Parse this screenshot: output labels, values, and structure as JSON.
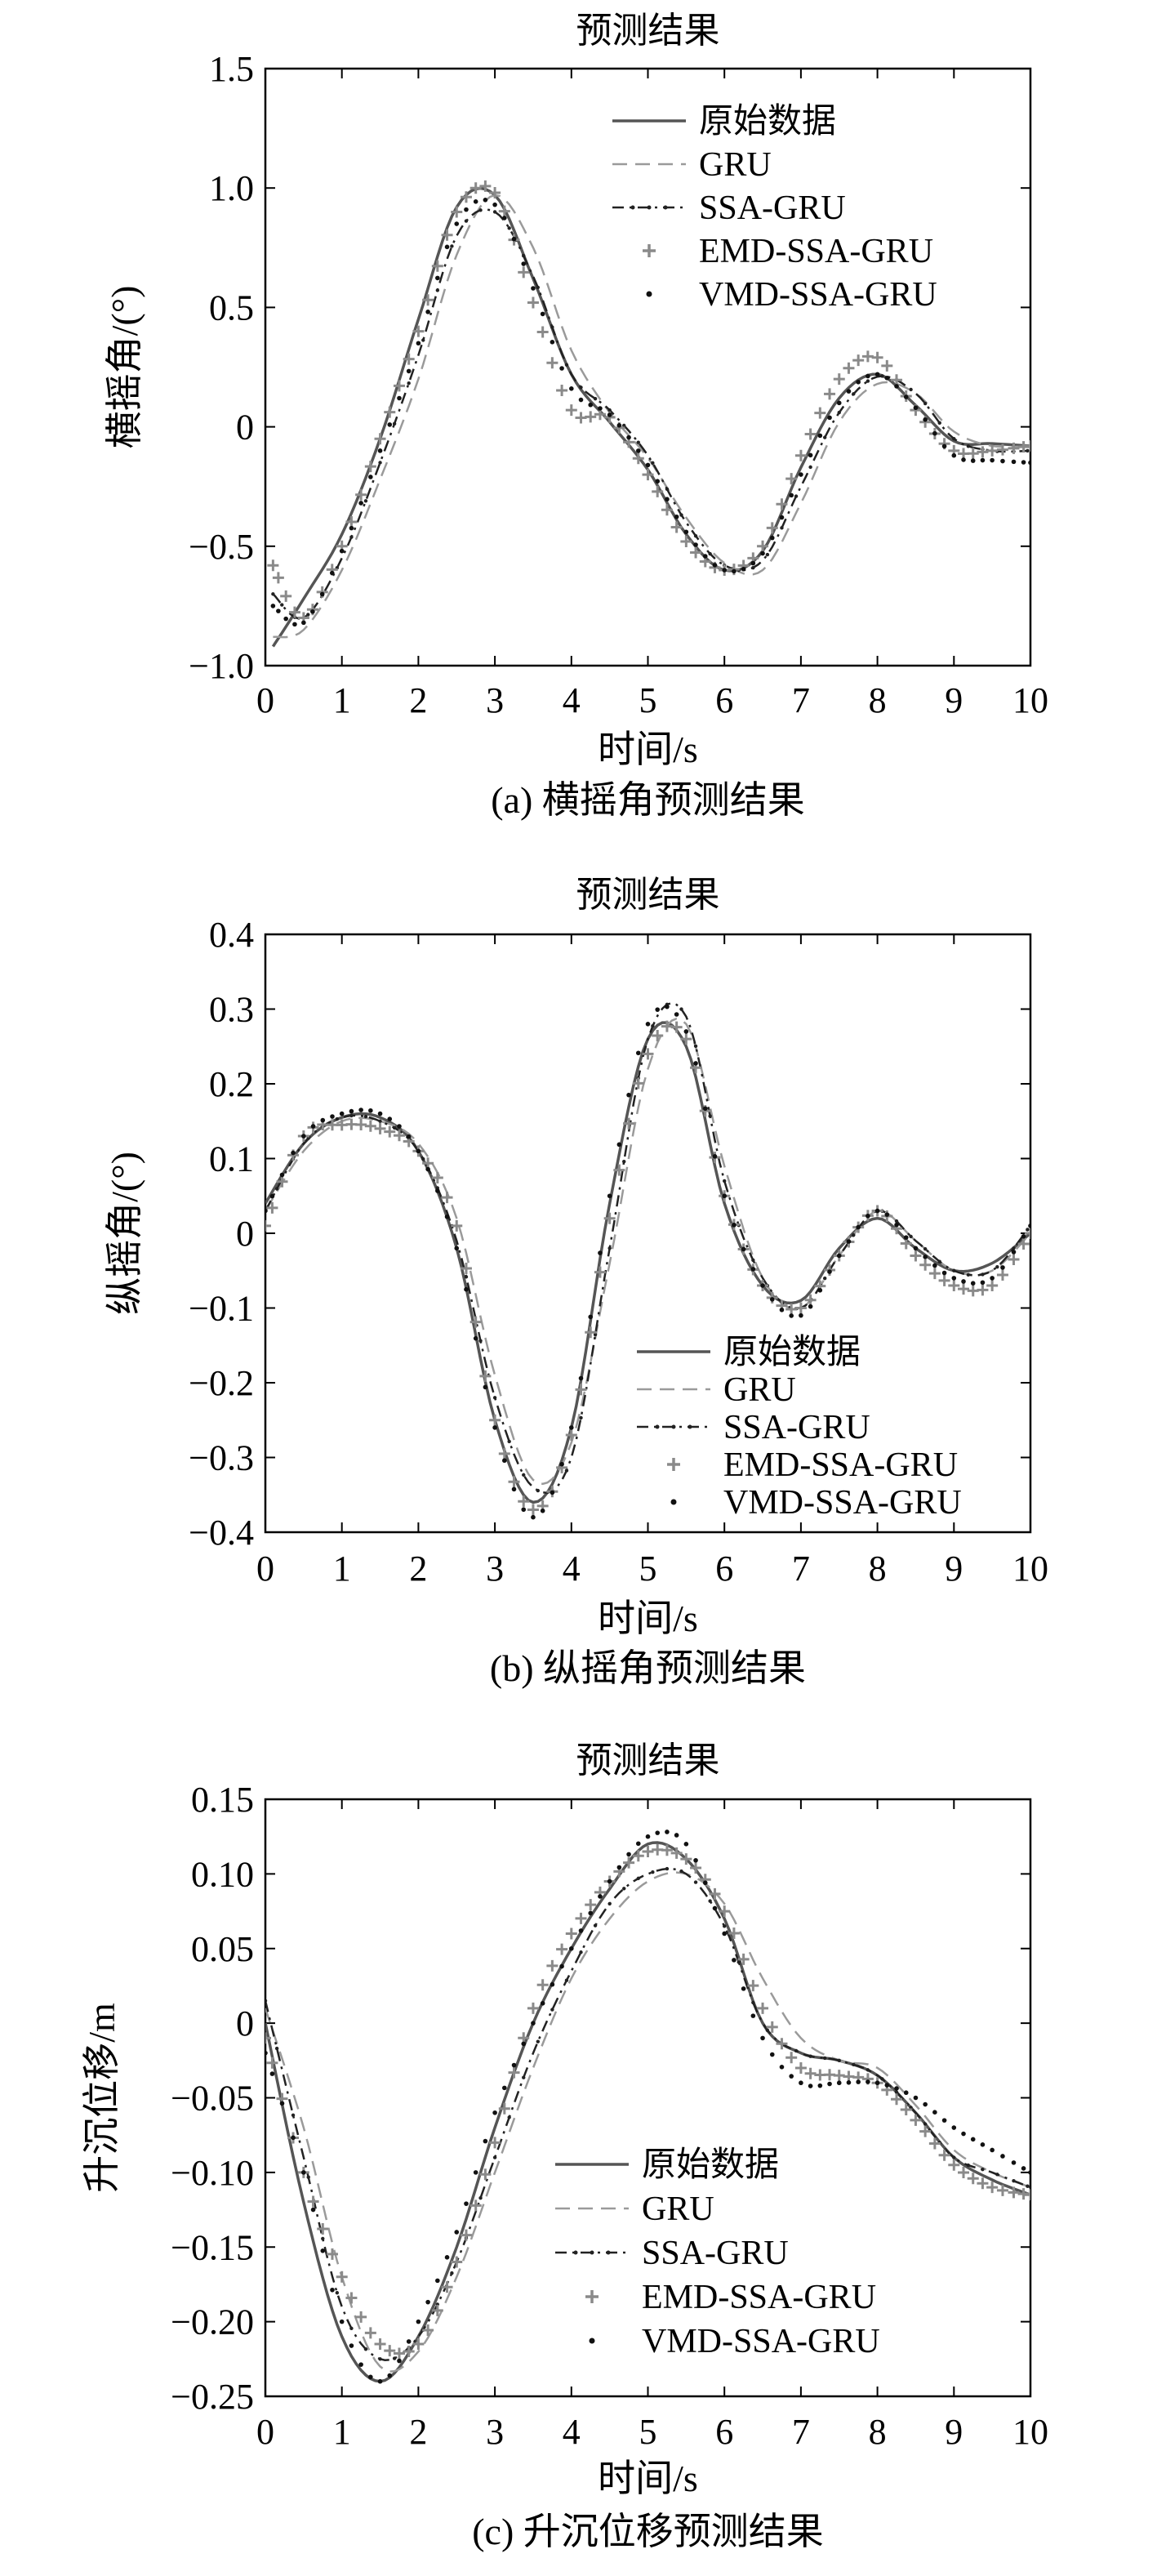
{
  "chart_data": [
    {
      "type": "line",
      "title": "预测结果",
      "caption": "(a) 横摇角预测结果",
      "xlabel": "时间/s",
      "ylabel": "横摇角/(°)",
      "xlim": [
        0,
        10
      ],
      "ylim": [
        -1.0,
        1.5
      ],
      "xticks": [
        0,
        1,
        2,
        3,
        4,
        5,
        6,
        7,
        8,
        9,
        10
      ],
      "xtick_labels": [
        "0",
        "1",
        "2",
        "3",
        "4",
        "5",
        "6",
        "7",
        "8",
        "9",
        "10"
      ],
      "yticks": [
        -1.0,
        -0.5,
        0,
        0.5,
        1.0,
        1.5
      ],
      "ytick_labels": [
        "−1.0",
        "−0.5",
        "0",
        "0.5",
        "1.0",
        "1.5"
      ],
      "legend_position": "top-right",
      "grid": false,
      "x": [
        0.1,
        0.5,
        1.0,
        1.5,
        2.0,
        2.5,
        3.0,
        3.5,
        4.0,
        4.5,
        5.0,
        5.5,
        6.0,
        6.5,
        7.0,
        7.5,
        8.0,
        8.5,
        9.0,
        9.5,
        10.0
      ],
      "series": [
        {
          "name": "原始数据",
          "style": "solid",
          "color": "#555555",
          "values": [
            -0.92,
            -0.72,
            -0.45,
            -0.05,
            0.45,
            0.92,
            0.97,
            0.62,
            0.22,
            0.02,
            -0.18,
            -0.45,
            -0.6,
            -0.52,
            -0.17,
            0.12,
            0.22,
            0.09,
            -0.06,
            -0.07,
            -0.08
          ]
        },
        {
          "name": "GRU",
          "style": "dashed",
          "color": "#9a9a9a",
          "values": [
            -0.88,
            -0.85,
            -0.6,
            -0.22,
            0.2,
            0.72,
            0.97,
            0.75,
            0.32,
            0.06,
            -0.13,
            -0.38,
            -0.57,
            -0.6,
            -0.32,
            0.02,
            0.18,
            0.14,
            -0.02,
            -0.08,
            -0.08
          ]
        },
        {
          "name": "SSA-GRU",
          "style": "dashdot",
          "color": "#222222",
          "values": [
            -0.7,
            -0.8,
            -0.55,
            -0.15,
            0.3,
            0.8,
            0.9,
            0.63,
            0.22,
            0.07,
            -0.12,
            -0.4,
            -0.58,
            -0.56,
            -0.25,
            0.06,
            0.21,
            0.14,
            -0.05,
            -0.1,
            -0.1
          ]
        },
        {
          "name": "EMD-SSA-GRU",
          "style": "plus",
          "color": "#8a8a8a",
          "values": [
            -0.58,
            -0.8,
            -0.5,
            -0.05,
            0.4,
            0.9,
            0.98,
            0.52,
            0.07,
            0.04,
            -0.2,
            -0.48,
            -0.6,
            -0.5,
            -0.12,
            0.2,
            0.29,
            0.07,
            -0.1,
            -0.1,
            -0.08
          ]
        },
        {
          "name": "VMD-SSA-GRU",
          "style": "dot",
          "color": "#111111",
          "values": [
            -0.75,
            -0.82,
            -0.52,
            -0.1,
            0.35,
            0.85,
            0.93,
            0.58,
            0.16,
            0.05,
            -0.16,
            -0.44,
            -0.6,
            -0.53,
            -0.2,
            0.1,
            0.22,
            0.08,
            -0.12,
            -0.14,
            -0.15
          ]
        }
      ]
    },
    {
      "type": "line",
      "title": "预测结果",
      "caption": "(b) 纵摇角预测结果",
      "xlabel": "时间/s",
      "ylabel": "纵摇角/(°)",
      "xlim": [
        0,
        10
      ],
      "ylim": [
        -0.4,
        0.4
      ],
      "xticks": [
        0,
        1,
        2,
        3,
        4,
        5,
        6,
        7,
        8,
        9,
        10
      ],
      "xtick_labels": [
        "0",
        "1",
        "2",
        "3",
        "4",
        "5",
        "6",
        "7",
        "8",
        "9",
        "10"
      ],
      "yticks": [
        -0.4,
        -0.3,
        -0.2,
        -0.1,
        0,
        0.1,
        0.2,
        0.3,
        0.4
      ],
      "ytick_labels": [
        "−0.4",
        "−0.3",
        "−0.2",
        "−0.1",
        "0",
        "0.1",
        "0.2",
        "0.3",
        "0.4"
      ],
      "legend_position": "bottom-right",
      "grid": false,
      "x": [
        0.0,
        0.5,
        1.0,
        1.5,
        2.0,
        2.5,
        3.0,
        3.5,
        4.0,
        4.5,
        5.0,
        5.5,
        6.0,
        6.5,
        7.0,
        7.5,
        8.0,
        8.5,
        9.0,
        9.5,
        10.0
      ],
      "series": [
        {
          "name": "原始数据",
          "style": "solid",
          "color": "#555555",
          "values": [
            0.04,
            0.12,
            0.155,
            0.155,
            0.11,
            -0.02,
            -0.25,
            -0.36,
            -0.26,
            0.04,
            0.26,
            0.25,
            0.04,
            -0.07,
            -0.09,
            -0.02,
            0.02,
            -0.02,
            -0.05,
            -0.04,
            0.0
          ]
        },
        {
          "name": "GRU",
          "style": "dashed",
          "color": "#9a9a9a",
          "values": [
            0.03,
            0.11,
            0.15,
            0.15,
            0.12,
            0.02,
            -0.19,
            -0.33,
            -0.28,
            -0.04,
            0.22,
            0.28,
            0.09,
            -0.06,
            -0.1,
            -0.03,
            0.03,
            -0.01,
            -0.05,
            -0.05,
            0.0
          ]
        },
        {
          "name": "SSA-GRU",
          "style": "dashdot",
          "color": "#222222",
          "values": [
            0.03,
            0.12,
            0.155,
            0.15,
            0.11,
            -0.01,
            -0.22,
            -0.34,
            -0.3,
            -0.02,
            0.26,
            0.29,
            0.07,
            -0.06,
            -0.1,
            -0.03,
            0.03,
            -0.01,
            -0.05,
            -0.05,
            0.01
          ]
        },
        {
          "name": "EMD-SSA-GRU",
          "style": "plus",
          "color": "#8a8a8a",
          "values": [
            0.01,
            0.13,
            0.145,
            0.14,
            0.11,
            0.01,
            -0.25,
            -0.37,
            -0.27,
            0.02,
            0.24,
            0.26,
            0.05,
            -0.07,
            -0.1,
            -0.03,
            0.03,
            -0.03,
            -0.07,
            -0.07,
            0.0
          ]
        },
        {
          "name": "VMD-SSA-GRU",
          "style": "dot",
          "color": "#111111",
          "values": [
            0.03,
            0.13,
            0.16,
            0.16,
            0.11,
            -0.02,
            -0.26,
            -0.38,
            -0.26,
            0.05,
            0.28,
            0.27,
            0.05,
            -0.07,
            -0.11,
            -0.03,
            0.03,
            -0.02,
            -0.06,
            -0.06,
            0.01
          ]
        }
      ]
    },
    {
      "type": "line",
      "title": "预测结果",
      "caption": "(c) 升沉位移预测结果",
      "xlabel": "时间/s",
      "ylabel": "升沉位移/m",
      "xlim": [
        0,
        10
      ],
      "ylim": [
        -0.25,
        0.15
      ],
      "xticks": [
        0,
        1,
        2,
        3,
        4,
        5,
        6,
        7,
        8,
        9,
        10
      ],
      "xtick_labels": [
        "0",
        "1",
        "2",
        "3",
        "4",
        "5",
        "6",
        "7",
        "8",
        "9",
        "10"
      ],
      "yticks": [
        -0.25,
        -0.2,
        -0.15,
        -0.1,
        -0.05,
        0,
        0.05,
        0.1,
        0.15
      ],
      "ytick_labels": [
        "−0.25",
        "−0.20",
        "−0.15",
        "−0.10",
        "−0.05",
        "0",
        "0.05",
        "0.10",
        "0.15"
      ],
      "legend_position": "bottom-center",
      "grid": false,
      "x": [
        0.0,
        0.5,
        1.0,
        1.5,
        2.0,
        2.5,
        3.0,
        3.5,
        4.0,
        4.5,
        5.0,
        5.5,
        6.0,
        6.5,
        7.0,
        7.5,
        8.0,
        8.5,
        9.0,
        9.5,
        10.0
      ],
      "series": [
        {
          "name": "原始数据",
          "style": "solid",
          "color": "#555555",
          "values": [
            0.0,
            -0.12,
            -0.21,
            -0.24,
            -0.21,
            -0.15,
            -0.07,
            0.0,
            0.05,
            0.09,
            0.12,
            0.11,
            0.07,
            0.0,
            -0.02,
            -0.025,
            -0.035,
            -0.06,
            -0.09,
            -0.105,
            -0.115
          ]
        },
        {
          "name": "GRU",
          "style": "dashed",
          "color": "#9a9a9a",
          "values": [
            0.01,
            -0.07,
            -0.17,
            -0.23,
            -0.22,
            -0.17,
            -0.1,
            -0.03,
            0.03,
            0.07,
            0.095,
            0.1,
            0.08,
            0.03,
            -0.01,
            -0.025,
            -0.03,
            -0.055,
            -0.085,
            -0.1,
            -0.11
          ]
        },
        {
          "name": "SSA-GRU",
          "style": "dashdot",
          "color": "#222222",
          "values": [
            0.015,
            -0.09,
            -0.19,
            -0.225,
            -0.21,
            -0.16,
            -0.09,
            -0.02,
            0.035,
            0.08,
            0.1,
            0.1,
            0.065,
            0.0,
            -0.02,
            -0.025,
            -0.035,
            -0.06,
            -0.09,
            -0.1,
            -0.11
          ]
        },
        {
          "name": "EMD-SSA-GRU",
          "style": "plus",
          "color": "#8a8a8a",
          "values": [
            -0.01,
            -0.1,
            -0.17,
            -0.215,
            -0.215,
            -0.16,
            -0.08,
            0.01,
            0.06,
            0.095,
            0.115,
            0.11,
            0.075,
            0.01,
            -0.03,
            -0.035,
            -0.04,
            -0.065,
            -0.095,
            -0.11,
            -0.115
          ]
        },
        {
          "name": "VMD-SSA-GRU",
          "style": "dot",
          "color": "#111111",
          "values": [
            -0.02,
            -0.1,
            -0.2,
            -0.24,
            -0.2,
            -0.14,
            -0.06,
            0.0,
            0.05,
            0.095,
            0.125,
            0.12,
            0.06,
            -0.01,
            -0.04,
            -0.04,
            -0.04,
            -0.05,
            -0.07,
            -0.085,
            -0.1
          ]
        }
      ]
    }
  ]
}
